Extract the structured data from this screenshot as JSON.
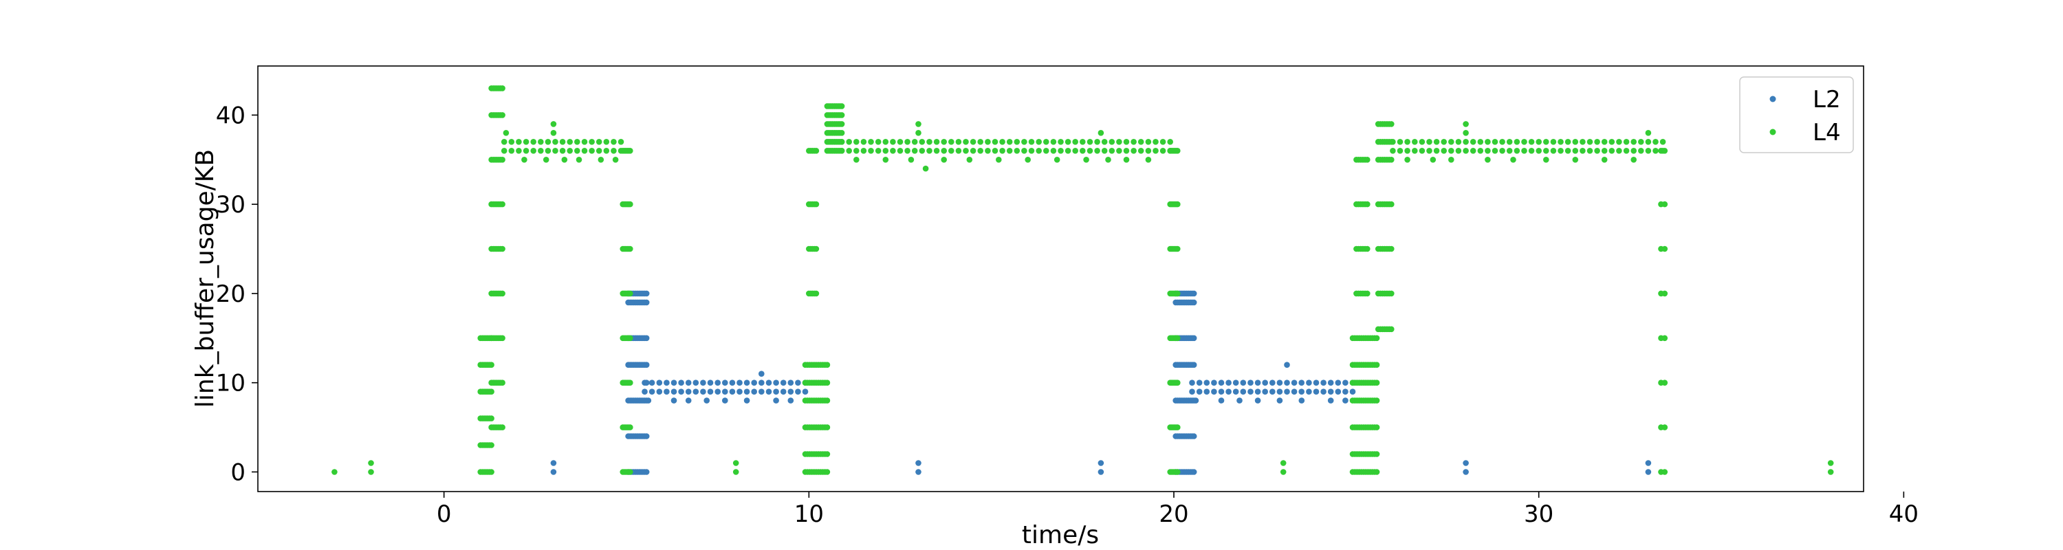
{
  "chart_data": {
    "type": "scatter",
    "xlabel": "time/s",
    "ylabel": "link_buffer_usage/KB",
    "xlim": [
      -5.1,
      38.9
    ],
    "ylim": [
      -2.2,
      45.5
    ],
    "xticks": [
      0,
      10,
      20,
      30,
      40
    ],
    "yticks": [
      0,
      10,
      20,
      30,
      40
    ],
    "legend_position": "upper right",
    "grid": false,
    "series": [
      {
        "name": "L2",
        "color": "#3b7dba",
        "segments": [
          {
            "x0": 5.05,
            "x1": 5.55,
            "dx": 0.05,
            "ys": [
              0,
              4,
              8,
              12,
              15,
              19,
              20
            ]
          },
          {
            "x0": 5.5,
            "x1": 10,
            "dx": 0.2,
            "ys": [
              9,
              10
            ]
          },
          {
            "x0": 20.05,
            "x1": 20.55,
            "dx": 0.05,
            "ys": [
              0,
              4,
              8,
              12,
              15,
              19,
              20
            ]
          },
          {
            "x0": 20.5,
            "x1": 25,
            "dx": 0.2,
            "ys": [
              9,
              10
            ]
          }
        ],
        "points": [
          [
            3,
            0
          ],
          [
            3,
            1
          ],
          [
            13,
            0
          ],
          [
            13,
            1
          ],
          [
            18,
            0
          ],
          [
            18,
            1
          ],
          [
            28,
            0
          ],
          [
            28,
            1
          ],
          [
            33,
            0
          ],
          [
            33,
            1
          ],
          [
            5.55,
            10
          ],
          [
            5.6,
            8
          ],
          [
            6.3,
            8
          ],
          [
            6.7,
            8
          ],
          [
            7.2,
            8
          ],
          [
            7.7,
            8
          ],
          [
            8.3,
            8
          ],
          [
            8.7,
            11
          ],
          [
            9.1,
            8
          ],
          [
            9.5,
            8
          ],
          [
            20.6,
            8
          ],
          [
            21.3,
            8
          ],
          [
            21.8,
            8
          ],
          [
            22.3,
            8
          ],
          [
            22.9,
            8
          ],
          [
            23.1,
            12
          ],
          [
            23.5,
            8
          ],
          [
            24.3,
            8
          ],
          [
            24.7,
            8
          ]
        ]
      },
      {
        "name": "L4",
        "color": "#33cc33",
        "segments": [
          {
            "x0": 1.0,
            "x1": 1.3,
            "dx": 0.05,
            "ys": [
              0,
              3,
              6,
              9,
              12,
              15
            ]
          },
          {
            "x0": 1.3,
            "x1": 1.6,
            "dx": 0.05,
            "ys": [
              5,
              10,
              15,
              20,
              25,
              30,
              35,
              40,
              43
            ]
          },
          {
            "x0": 1.65,
            "x1": 5.0,
            "dx": 0.2,
            "ys": [
              36,
              37
            ]
          },
          {
            "x0": 4.9,
            "x1": 5.1,
            "dx": 0.04,
            "ys": [
              0,
              5,
              10,
              15,
              20,
              25,
              30,
              36
            ]
          },
          {
            "x0": 9.9,
            "x1": 10.5,
            "dx": 0.06,
            "ys": [
              0,
              2,
              5,
              8,
              10,
              12
            ]
          },
          {
            "x0": 10.0,
            "x1": 10.2,
            "dx": 0.05,
            "ys": [
              20,
              25,
              30,
              36
            ]
          },
          {
            "x0": 10.5,
            "x1": 10.9,
            "dx": 0.05,
            "ys": [
              36,
              37,
              38,
              39,
              40,
              41
            ]
          },
          {
            "x0": 10.9,
            "x1": 20.0,
            "dx": 0.2,
            "ys": [
              36,
              37
            ]
          },
          {
            "x0": 19.9,
            "x1": 20.1,
            "dx": 0.04,
            "ys": [
              0,
              5,
              10,
              15,
              20,
              25,
              30,
              36
            ]
          },
          {
            "x0": 24.9,
            "x1": 25.6,
            "dx": 0.06,
            "ys": [
              0,
              2,
              5,
              8,
              10,
              12,
              15
            ]
          },
          {
            "x0": 25.0,
            "x1": 25.3,
            "dx": 0.06,
            "ys": [
              20,
              25,
              30,
              35
            ]
          },
          {
            "x0": 25.6,
            "x1": 26.0,
            "dx": 0.06,
            "ys": [
              16,
              20,
              25,
              30,
              35,
              37,
              39
            ]
          },
          {
            "x0": 26.0,
            "x1": 33.4,
            "dx": 0.2,
            "ys": [
              36,
              37
            ]
          },
          {
            "x0": 33.35,
            "x1": 33.45,
            "dx": 0.1,
            "ys": [
              0,
              5,
              10,
              15,
              20,
              25,
              30,
              36
            ]
          }
        ],
        "points": [
          [
            -3,
            0
          ],
          [
            -2,
            0
          ],
          [
            -2,
            1
          ],
          [
            8,
            0
          ],
          [
            8,
            1
          ],
          [
            23,
            0
          ],
          [
            23,
            1
          ],
          [
            38,
            0
          ],
          [
            38,
            1
          ],
          [
            1.7,
            38
          ],
          [
            3.0,
            38
          ],
          [
            3.0,
            39
          ],
          [
            2.2,
            35
          ],
          [
            2.8,
            35
          ],
          [
            3.3,
            35
          ],
          [
            3.7,
            35
          ],
          [
            4.3,
            35
          ],
          [
            4.7,
            35
          ],
          [
            11.3,
            35
          ],
          [
            12.1,
            35
          ],
          [
            12.8,
            35
          ],
          [
            13.0,
            38
          ],
          [
            13.0,
            39
          ],
          [
            13.2,
            34
          ],
          [
            13.7,
            35
          ],
          [
            14.4,
            35
          ],
          [
            15.2,
            35
          ],
          [
            16.0,
            35
          ],
          [
            16.8,
            35
          ],
          [
            17.6,
            35
          ],
          [
            18.0,
            38
          ],
          [
            18.2,
            35
          ],
          [
            18.7,
            35
          ],
          [
            19.3,
            35
          ],
          [
            26.4,
            35
          ],
          [
            27.1,
            35
          ],
          [
            27.6,
            35
          ],
          [
            28.0,
            38
          ],
          [
            28.0,
            39
          ],
          [
            28.6,
            35
          ],
          [
            29.3,
            35
          ],
          [
            30.2,
            35
          ],
          [
            31.0,
            35
          ],
          [
            31.8,
            35
          ],
          [
            32.6,
            35
          ],
          [
            33.0,
            38
          ]
        ]
      }
    ]
  }
}
